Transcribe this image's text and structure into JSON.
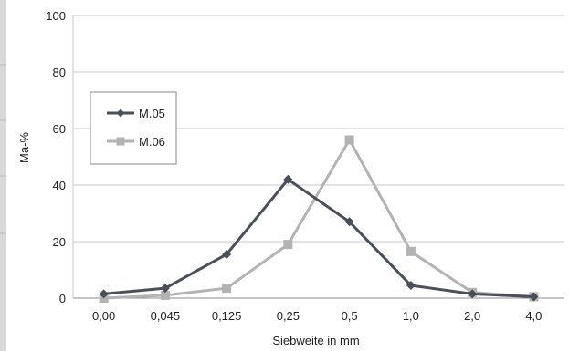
{
  "chart_data": {
    "type": "line",
    "categories": [
      "0,00",
      "0,045",
      "0,125",
      "0,25",
      "0,5",
      "1,0",
      "2,0",
      "4,0"
    ],
    "series": [
      {
        "name": "M.05",
        "color": "#4a5059",
        "marker": "diamond",
        "values": [
          1.5,
          3.5,
          15.5,
          42,
          27,
          4.5,
          1.5,
          0.5
        ]
      },
      {
        "name": "M.06",
        "color": "#b3b3b3",
        "marker": "square",
        "values": [
          0,
          1,
          3.5,
          19,
          56,
          16.5,
          2,
          0.5
        ]
      }
    ],
    "xlabel": "Siebweite in mm",
    "ylabel": "Ma-%",
    "ylim": [
      0,
      100
    ],
    "yticks": [
      "0",
      "20",
      "40",
      "60",
      "80",
      "100"
    ],
    "grid": "horizontal",
    "legend_position": "left"
  }
}
